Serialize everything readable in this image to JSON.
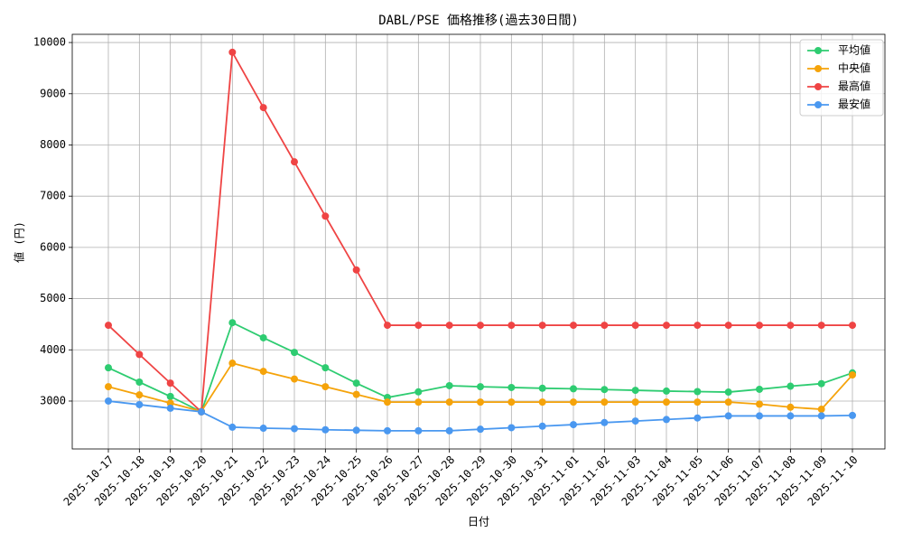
{
  "chart_data": {
    "type": "line",
    "title": "DABL/PSE 価格推移(過去30日間)",
    "xlabel": "日付",
    "ylabel": "値 (円)",
    "categories": [
      "2025-10-17",
      "2025-10-18",
      "2025-10-19",
      "2025-10-20",
      "2025-10-21",
      "2025-10-22",
      "2025-10-23",
      "2025-10-24",
      "2025-10-25",
      "2025-10-26",
      "2025-10-27",
      "2025-10-28",
      "2025-10-29",
      "2025-10-30",
      "2025-10-31",
      "2025-11-01",
      "2025-11-02",
      "2025-11-03",
      "2025-11-04",
      "2025-11-05",
      "2025-11-06",
      "2025-11-07",
      "2025-11-08",
      "2025-11-09",
      "2025-11-10"
    ],
    "series": [
      {
        "name": "平均値",
        "color": "#2ecc71",
        "values": [
          3650,
          3370,
          3090,
          2790,
          4530,
          4235,
          3950,
          3650,
          3350,
          3070,
          3180,
          3300,
          3280,
          3265,
          3250,
          3240,
          3225,
          3210,
          3195,
          3185,
          3175,
          3230,
          3290,
          3340,
          3550
        ]
      },
      {
        "name": "中央値",
        "color": "#f5a30a",
        "values": [
          3280,
          3120,
          2960,
          2800,
          3740,
          3580,
          3430,
          3280,
          3130,
          2980,
          2980,
          2980,
          2980,
          2980,
          2980,
          2980,
          2980,
          2980,
          2980,
          2980,
          2980,
          2940,
          2880,
          2840,
          3510
        ]
      },
      {
        "name": "最高値",
        "color": "#ef4444",
        "values": [
          4480,
          3910,
          3350,
          2790,
          9810,
          8730,
          7670,
          6610,
          5560,
          4480,
          4480,
          4480,
          4480,
          4480,
          4480,
          4480,
          4480,
          4480,
          4480,
          4480,
          4480,
          4480,
          4480,
          4480,
          4480
        ]
      },
      {
        "name": "最安値",
        "color": "#4a98f0",
        "values": [
          3000,
          2930,
          2860,
          2790,
          2490,
          2470,
          2460,
          2440,
          2430,
          2420,
          2420,
          2420,
          2450,
          2480,
          2510,
          2540,
          2580,
          2610,
          2640,
          2670,
          2710,
          2710,
          2710,
          2710,
          2720
        ]
      }
    ],
    "ylim": [
      2065,
      10160
    ],
    "yticks": [
      3000,
      4000,
      5000,
      6000,
      7000,
      8000,
      9000,
      10000
    ],
    "grid": true,
    "legend": "upper right"
  }
}
